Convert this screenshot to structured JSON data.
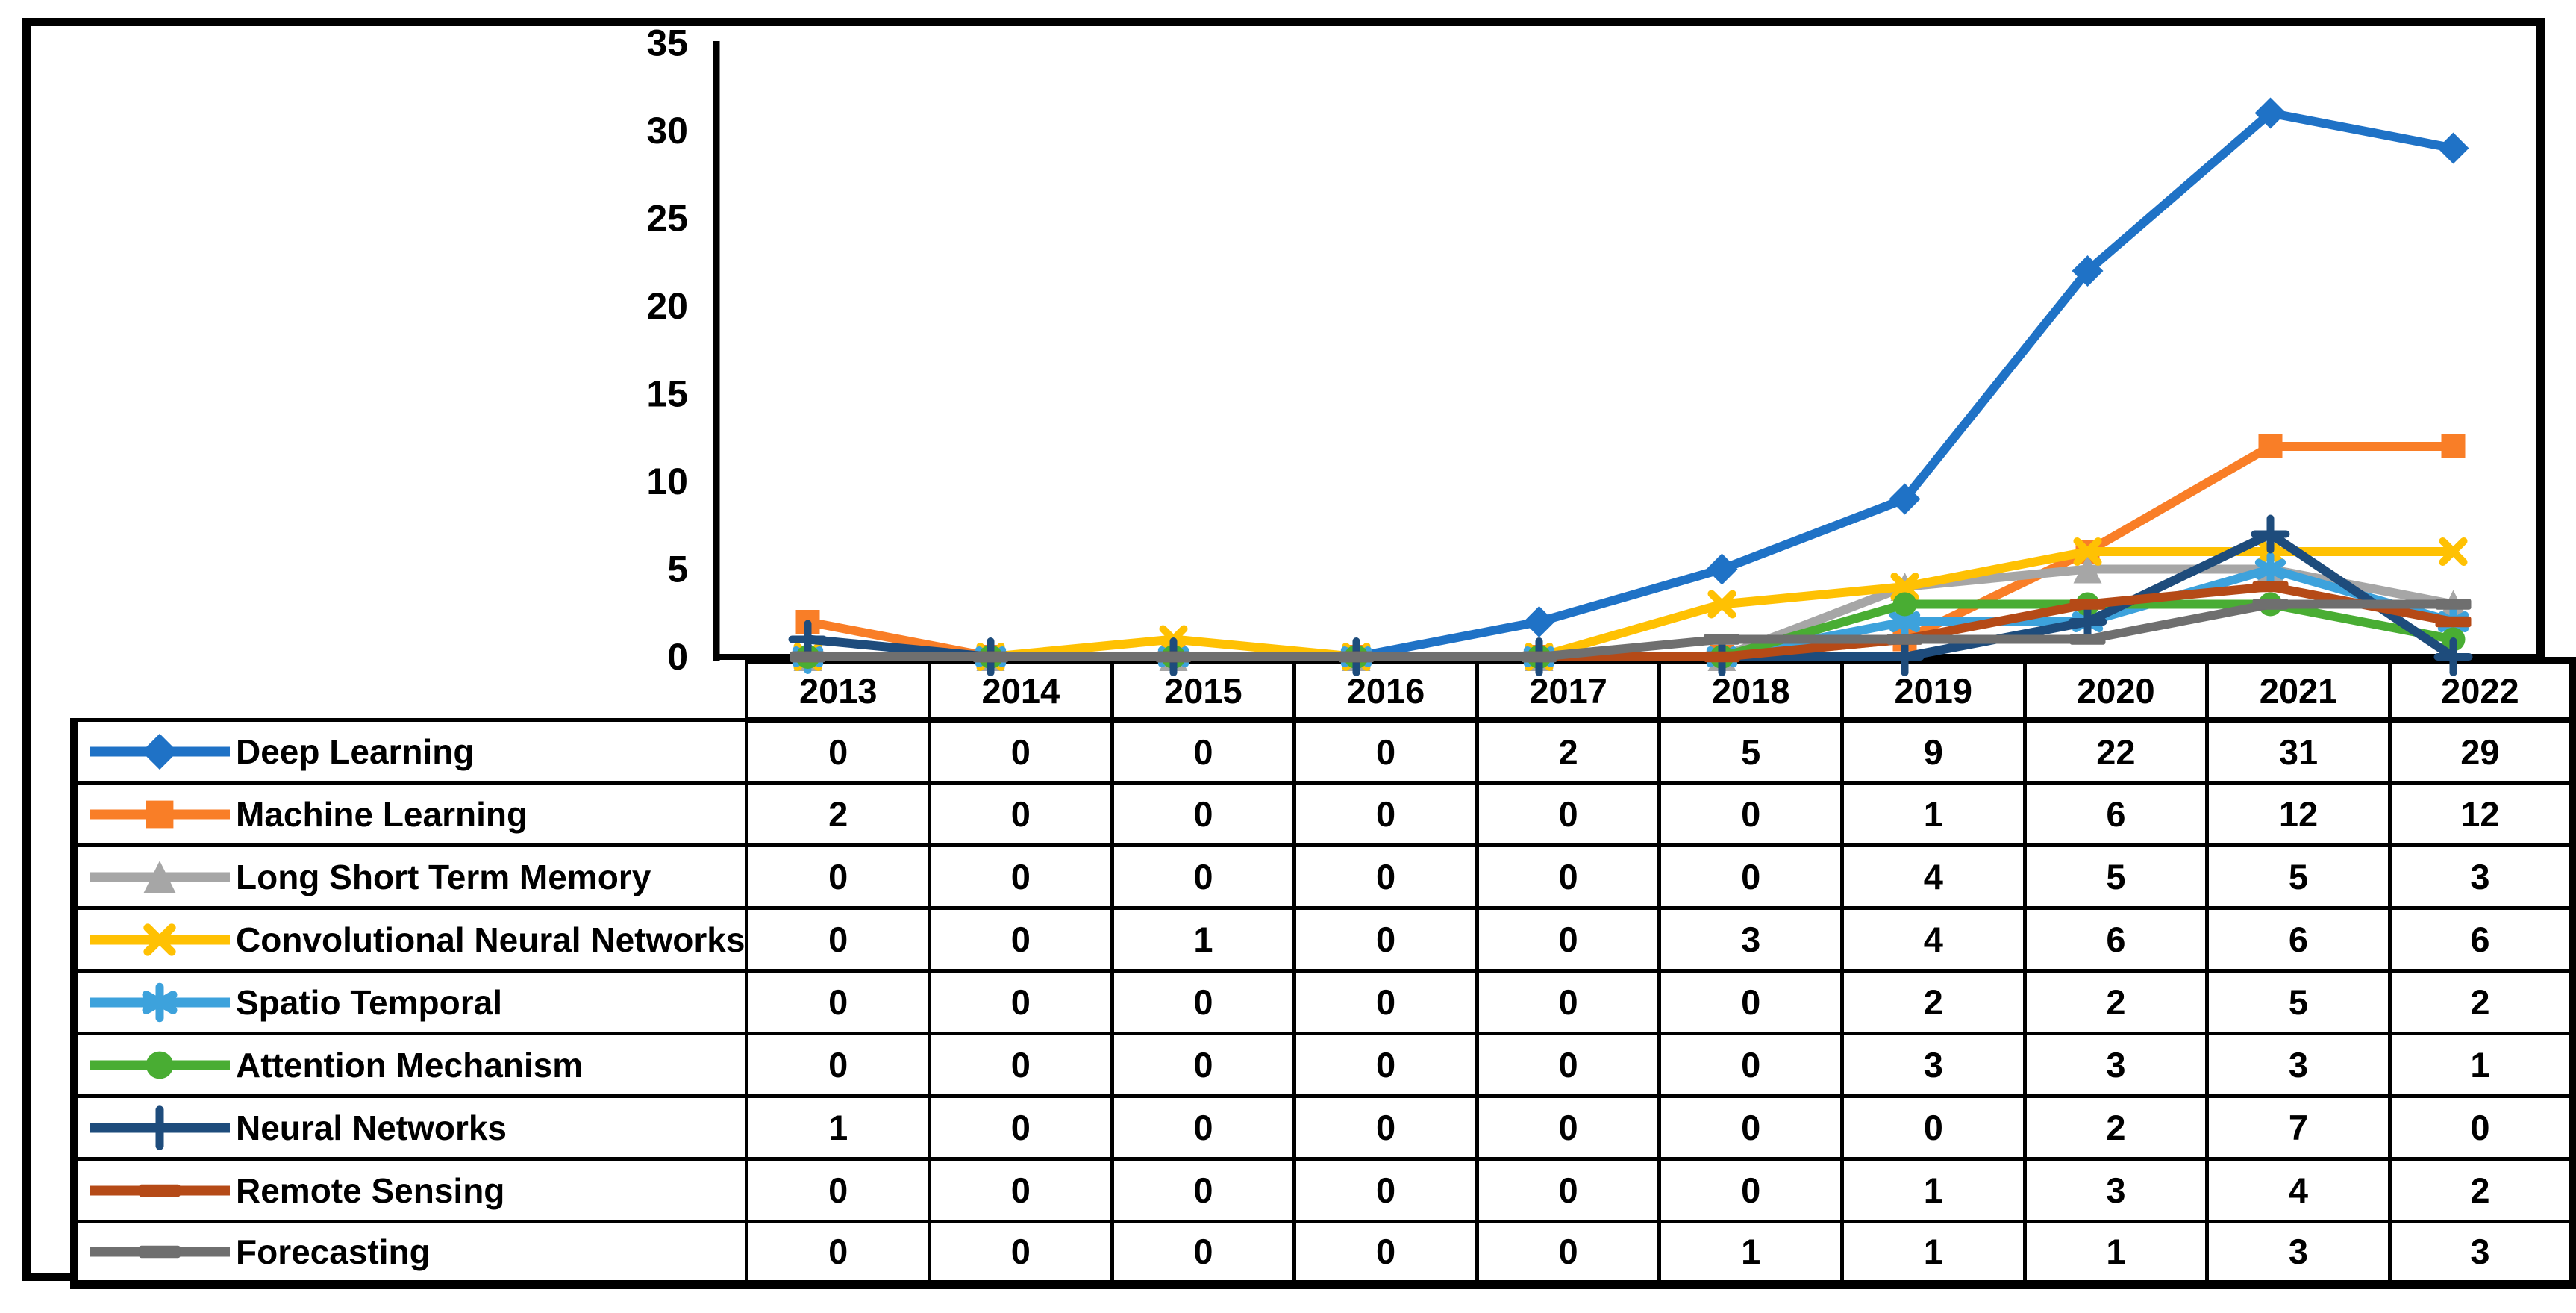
{
  "figure": {
    "background": "#ffffff",
    "border_color": "#000000"
  },
  "chart_data": {
    "type": "line",
    "title": "",
    "xlabel": "",
    "ylabel": "",
    "categories": [
      "2013",
      "2014",
      "2015",
      "2016",
      "2017",
      "2018",
      "2019",
      "2020",
      "2021",
      "2022"
    ],
    "yticks": [
      0,
      5,
      10,
      15,
      20,
      25,
      30,
      35
    ],
    "ylim": [
      0,
      35
    ],
    "grid": false,
    "legend_position": "table-left",
    "axis_color": "#000000",
    "series": [
      {
        "name": "Deep Learning",
        "color": "#1F72C6",
        "marker": "diamond",
        "values": [
          0,
          0,
          0,
          0,
          2,
          5,
          9,
          22,
          31,
          29
        ]
      },
      {
        "name": "Machine Learning",
        "color": "#F97E27",
        "marker": "square",
        "values": [
          2,
          0,
          0,
          0,
          0,
          0,
          1,
          6,
          12,
          12
        ]
      },
      {
        "name": "Long Short Term Memory",
        "color": "#A6A6A6",
        "marker": "triangle",
        "values": [
          0,
          0,
          0,
          0,
          0,
          0,
          4,
          5,
          5,
          3
        ]
      },
      {
        "name": "Convolutional Neural Networks",
        "color": "#FFC103",
        "marker": "x",
        "values": [
          0,
          0,
          1,
          0,
          0,
          3,
          4,
          6,
          6,
          6
        ]
      },
      {
        "name": "Spatio Temporal",
        "color": "#3DA2DC",
        "marker": "asterisk",
        "values": [
          0,
          0,
          0,
          0,
          0,
          0,
          2,
          2,
          5,
          2
        ]
      },
      {
        "name": "Attention Mechanism",
        "color": "#49AD33",
        "marker": "circle",
        "values": [
          0,
          0,
          0,
          0,
          0,
          0,
          3,
          3,
          3,
          1
        ]
      },
      {
        "name": "Neural Networks",
        "color": "#1E4C7C",
        "marker": "plus",
        "values": [
          1,
          0,
          0,
          0,
          0,
          0,
          0,
          2,
          7,
          0
        ]
      },
      {
        "name": "Remote Sensing",
        "color": "#B54A17",
        "marker": "dash",
        "values": [
          0,
          0,
          0,
          0,
          0,
          0,
          1,
          3,
          4,
          2
        ]
      },
      {
        "name": "Forecasting",
        "color": "#6F6F6F",
        "marker": "dash",
        "values": [
          0,
          0,
          0,
          0,
          0,
          1,
          1,
          1,
          3,
          3
        ]
      }
    ]
  }
}
